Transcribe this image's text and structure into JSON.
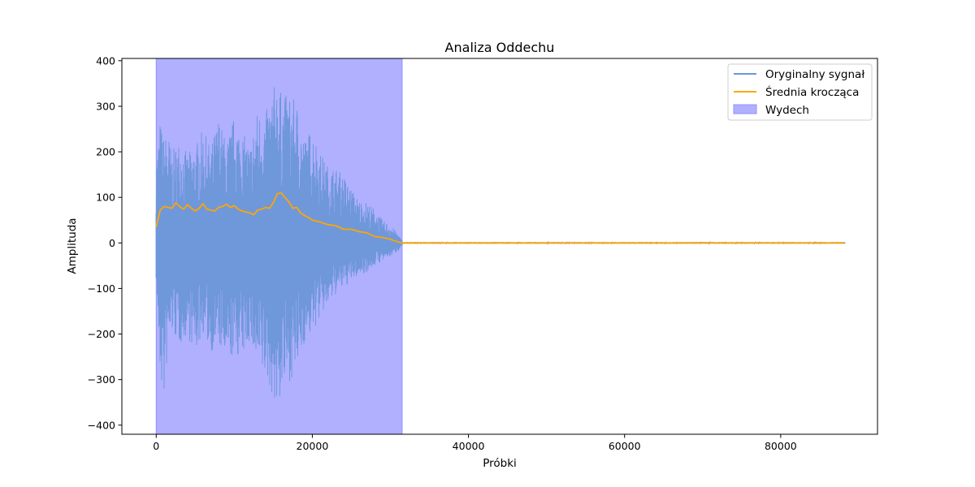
{
  "chart_data": {
    "type": "line",
    "title": "Analiza Oddechu",
    "xlabel": "Próbki",
    "ylabel": "Amplituda",
    "xlim": [
      -4400,
      92400
    ],
    "ylim": [
      -420,
      405
    ],
    "x_ticks": [
      0,
      20000,
      40000,
      60000,
      80000
    ],
    "x_tick_labels": [
      "0",
      "20000",
      "40000",
      "60000",
      "80000"
    ],
    "y_ticks": [
      -400,
      -300,
      -200,
      -100,
      0,
      100,
      200,
      300,
      400
    ],
    "y_tick_labels": [
      "−400",
      "−300",
      "−200",
      "−100",
      "0",
      "100",
      "200",
      "300",
      "400"
    ],
    "grid": false,
    "legend_position": "top-right",
    "colors": {
      "signal": "#6b97d8",
      "moving_average": "#ffa500",
      "region_fill": "#b0b0ff",
      "region_edge": "#8f8fff"
    },
    "series": [
      {
        "name": "Oryginalny sygnał",
        "x_start": 0,
        "x_end": 88200,
        "envelope": {
          "x": [
            0,
            500,
            1000,
            1500,
            2000,
            3000,
            4000,
            5000,
            6000,
            7000,
            8000,
            9000,
            10000,
            11000,
            12000,
            13000,
            14000,
            15000,
            15500,
            16000,
            17000,
            18000,
            19000,
            20000,
            21000,
            22000,
            23000,
            24000,
            25000,
            26000,
            27000,
            28000,
            29000,
            30000,
            31000,
            31500,
            31600,
            88200
          ],
          "upper": [
            185,
            270,
            230,
            250,
            200,
            230,
            195,
            215,
            250,
            210,
            280,
            220,
            280,
            245,
            215,
            295,
            285,
            340,
            370,
            330,
            325,
            310,
            230,
            255,
            200,
            170,
            165,
            150,
            120,
            95,
            90,
            75,
            50,
            40,
            20,
            5,
            2,
            2
          ],
          "lower": [
            -80,
            -300,
            -350,
            -240,
            -200,
            -225,
            -205,
            -245,
            -200,
            -240,
            -225,
            -275,
            -245,
            -255,
            -215,
            -290,
            -300,
            -340,
            -380,
            -335,
            -305,
            -285,
            -220,
            -200,
            -165,
            -140,
            -115,
            -100,
            -85,
            -70,
            -65,
            -50,
            -40,
            -30,
            -18,
            -5,
            -2,
            -2
          ]
        }
      },
      {
        "name": "Średnia krocząca",
        "x": [
          0,
          500,
          1000,
          1500,
          2000,
          2500,
          3000,
          3500,
          4000,
          4500,
          5000,
          5500,
          6000,
          6500,
          7000,
          7500,
          8000,
          8500,
          9000,
          9500,
          10000,
          10500,
          11000,
          11500,
          12000,
          12500,
          13000,
          13500,
          14000,
          14500,
          15000,
          15500,
          16000,
          16500,
          17000,
          17500,
          18000,
          18500,
          19000,
          19500,
          20000,
          21000,
          22000,
          23000,
          24000,
          25000,
          26000,
          27000,
          28000,
          29000,
          30000,
          31000,
          31500,
          88200
        ],
        "values": [
          35,
          72,
          80,
          78,
          76,
          88,
          80,
          74,
          84,
          76,
          70,
          76,
          86,
          74,
          72,
          70,
          78,
          80,
          85,
          78,
          82,
          74,
          70,
          68,
          66,
          62,
          72,
          74,
          78,
          76,
          88,
          108,
          110,
          100,
          90,
          76,
          78,
          66,
          60,
          56,
          50,
          46,
          40,
          38,
          30,
          30,
          25,
          22,
          14,
          12,
          8,
          2,
          0,
          0
        ]
      },
      {
        "name": "Wydech",
        "type": "region",
        "x_start": 0,
        "x_end": 31500
      }
    ]
  }
}
